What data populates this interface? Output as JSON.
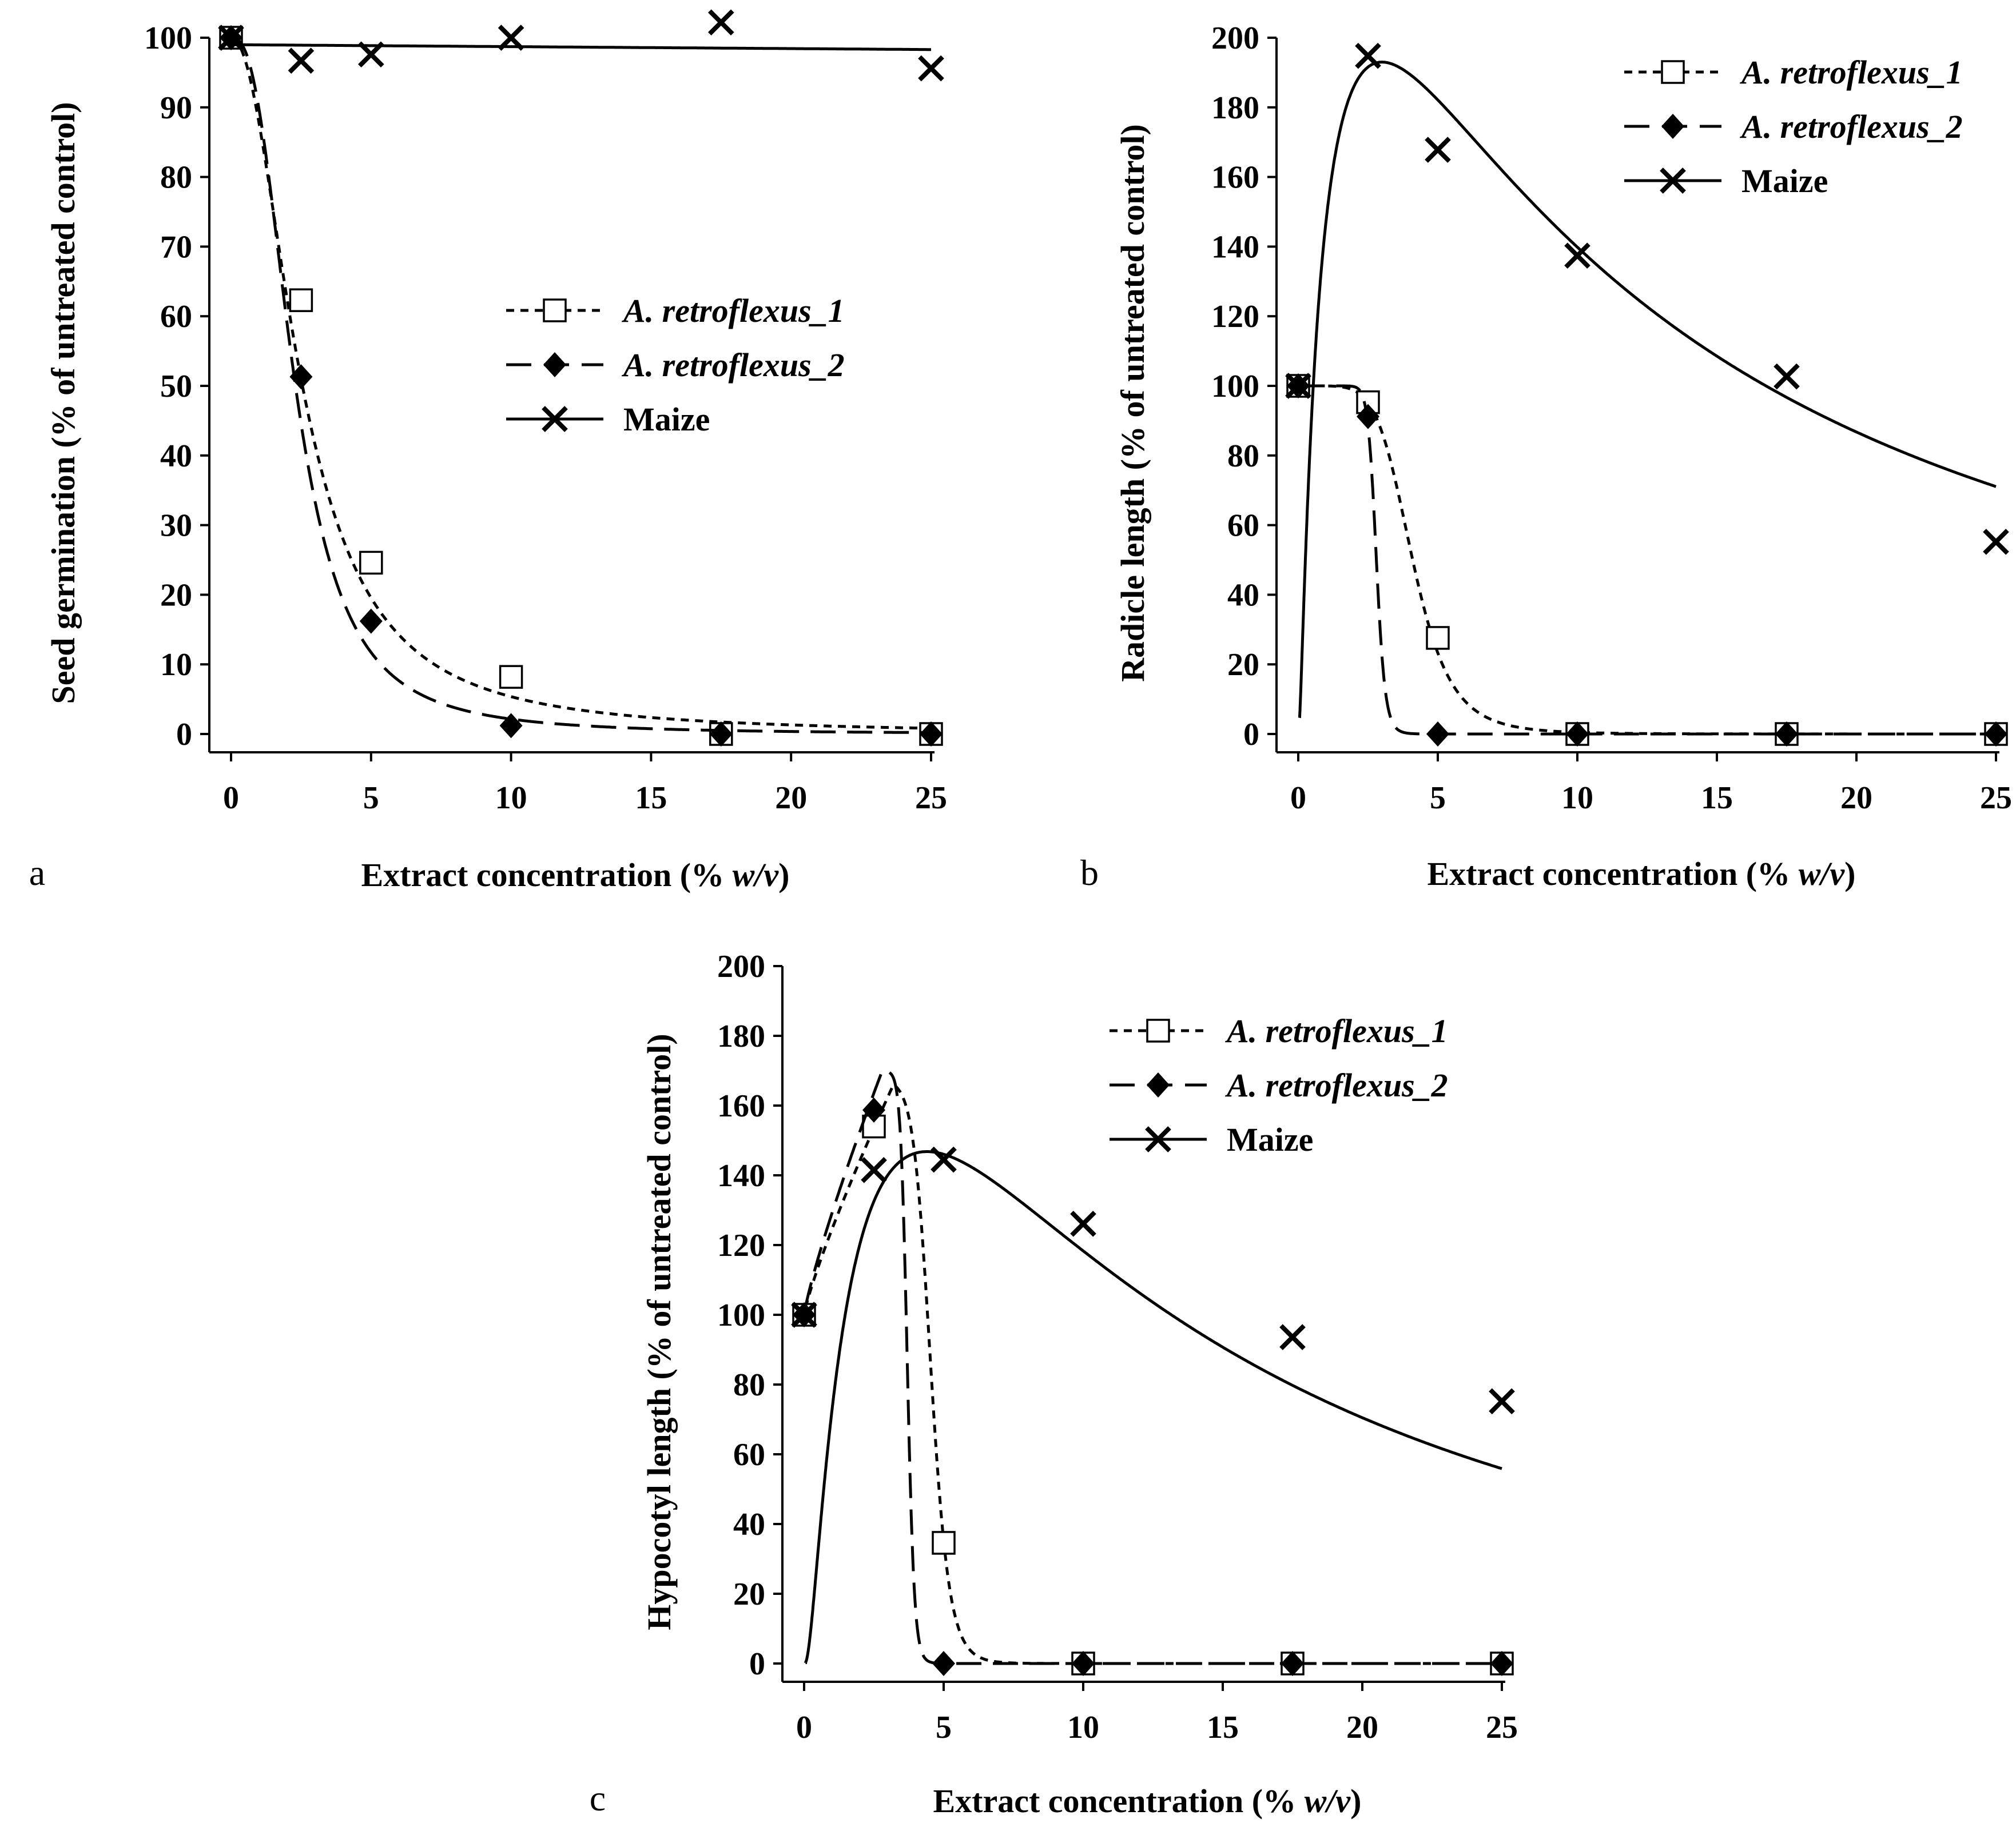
{
  "chart_data": [
    {
      "panel": "a",
      "type": "line",
      "xlabel": "Extract concentration (% w/v)",
      "xlabel_parts": [
        "Extract concentration (% ",
        "w/v",
        ")"
      ],
      "ylabel": "Seed germination (% of untreated control)",
      "xlim": [
        0,
        25
      ],
      "ylim": [
        0,
        100
      ],
      "xticks": [
        0,
        5,
        10,
        15,
        20,
        25
      ],
      "yticks": [
        0,
        10,
        20,
        30,
        40,
        50,
        60,
        70,
        80,
        90,
        100
      ],
      "legend_position": "center-right",
      "series": [
        {
          "name": "A. retroflexus_1",
          "marker": "square",
          "line": "short-dash",
          "points": [
            [
              0,
              100
            ],
            [
              2.5,
              62.3
            ],
            [
              5,
              24.6
            ],
            [
              10,
              8.2
            ],
            [
              17.5,
              0
            ],
            [
              25,
              0
            ]
          ],
          "fit": {
            "model": "logistic",
            "top": 100,
            "x50": 2.55,
            "slope": 2.1
          }
        },
        {
          "name": "A. retroflexus_2",
          "marker": "diamond",
          "line": "long-dash",
          "points": [
            [
              0,
              100
            ],
            [
              2.5,
              51.3
            ],
            [
              5,
              16.2
            ],
            [
              10,
              1.2
            ],
            [
              17.5,
              0
            ],
            [
              25,
              0
            ]
          ],
          "fit": {
            "model": "logistic",
            "top": 100,
            "x50": 2.3,
            "slope": 2.6
          }
        },
        {
          "name": "Maize",
          "marker": "cross",
          "line": "solid",
          "points": [
            [
              0,
              100
            ],
            [
              2.5,
              96.7
            ],
            [
              5,
              97.6
            ],
            [
              10,
              100
            ],
            [
              17.5,
              102.2
            ],
            [
              25,
              95.6
            ]
          ],
          "fit": {
            "model": "linear",
            "start": 99,
            "end": 98.3
          }
        }
      ]
    },
    {
      "panel": "b",
      "type": "line",
      "xlabel": "Extract concentration (% w/v)",
      "xlabel_parts": [
        "Extract concentration (% ",
        "w/v",
        ")"
      ],
      "ylabel": "Radicle length (% of untreated control)",
      "xlim": [
        0,
        25
      ],
      "ylim": [
        0,
        200
      ],
      "xticks": [
        0,
        5,
        10,
        15,
        20,
        25
      ],
      "yticks": [
        0,
        20,
        40,
        60,
        80,
        100,
        120,
        140,
        160,
        180,
        200
      ],
      "legend_position": "top-right",
      "series": [
        {
          "name": "A. retroflexus_1",
          "marker": "square",
          "line": "short-dash",
          "points": [
            [
              0,
              100
            ],
            [
              2.5,
              95.3
            ],
            [
              5,
              27.6
            ],
            [
              10,
              0
            ],
            [
              17.5,
              0
            ],
            [
              25,
              0
            ]
          ],
          "fit": {
            "model": "logistic",
            "top": 100,
            "x50": 4.1,
            "slope": 6
          }
        },
        {
          "name": "A. retroflexus_2",
          "marker": "diamond",
          "line": "long-dash",
          "points": [
            [
              0,
              100
            ],
            [
              2.5,
              91.2
            ],
            [
              5,
              0
            ],
            [
              10,
              0
            ],
            [
              17.5,
              0
            ],
            [
              25,
              0
            ]
          ],
          "fit": {
            "model": "logistic",
            "top": 100,
            "x50": 2.8,
            "slope": 18
          }
        },
        {
          "name": "Maize",
          "marker": "cross",
          "line": "solid",
          "points": [
            [
              0,
              100
            ],
            [
              2.5,
              194.8
            ],
            [
              5,
              167.8
            ],
            [
              10,
              137.4
            ],
            [
              17.5,
              102.7
            ],
            [
              25,
              55.2
            ]
          ],
          "fit": {
            "model": "hormesis",
            "ymax": 193,
            "xpeak": 3.0,
            "width": 1.5
          }
        }
      ]
    },
    {
      "panel": "c",
      "type": "line",
      "xlabel": "Extract concentration (% w/v)",
      "xlabel_parts": [
        "Extract concentration (% ",
        "w/v",
        ")"
      ],
      "ylabel": "Hypocotyl  length (% of untreated control)",
      "xlim": [
        0,
        25
      ],
      "ylim": [
        0,
        200
      ],
      "xticks": [
        0,
        5,
        10,
        15,
        20,
        25
      ],
      "yticks": [
        0,
        20,
        40,
        60,
        80,
        100,
        120,
        140,
        160,
        180,
        200
      ],
      "legend_position": "top-right",
      "series": [
        {
          "name": "A. retroflexus_1",
          "marker": "square",
          "line": "short-dash",
          "points": [
            [
              0,
              100
            ],
            [
              2.5,
              154
            ],
            [
              5,
              34.6
            ],
            [
              10,
              0
            ],
            [
              17.5,
              0
            ],
            [
              25,
              0
            ]
          ],
          "fit": {
            "model": "peak-drop",
            "peak_x": 3.2,
            "peak_y": 166,
            "x50": 4.55,
            "slope": 14
          }
        },
        {
          "name": "A. retroflexus_2",
          "marker": "diamond",
          "line": "long-dash",
          "points": [
            [
              0,
              100
            ],
            [
              2.5,
              158.7
            ],
            [
              5,
              0
            ],
            [
              10,
              0
            ],
            [
              17.5,
              0
            ],
            [
              25,
              0
            ]
          ],
          "fit": {
            "model": "peak-drop",
            "peak_x": 2.8,
            "peak_y": 170,
            "x50": 3.7,
            "slope": 30
          }
        },
        {
          "name": "Maize",
          "marker": "cross",
          "line": "solid",
          "points": [
            [
              0,
              100
            ],
            [
              2.5,
              141.5
            ],
            [
              5,
              144.5
            ],
            [
              10,
              126.1
            ],
            [
              17.5,
              93.6
            ],
            [
              25,
              75.2
            ]
          ],
          "fit": {
            "model": "hormesis",
            "ymax": 146.8,
            "xpeak": 4.4,
            "width": 1.25
          }
        }
      ]
    }
  ]
}
